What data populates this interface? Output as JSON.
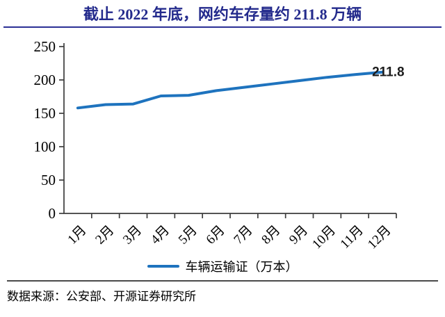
{
  "title": "截止 2022 年底，网约车存量约 211.8 万辆",
  "colors": {
    "title": "#232a8c",
    "title_rule": "#2b3095",
    "line": "#1e73be",
    "axis": "#3c3c3c",
    "tick_text": "#000000",
    "annotation_text": "#1c1c1c",
    "source_rule": "#4a4a4a"
  },
  "chart_data": {
    "type": "line",
    "categories": [
      "1月",
      "2月",
      "3月",
      "4月",
      "5月",
      "6月",
      "7月",
      "8月",
      "9月",
      "10月",
      "11月",
      "12月"
    ],
    "series": [
      {
        "name": "车辆运输证（万本）",
        "values": [
          158,
          163,
          164,
          176,
          177,
          184,
          189,
          194,
          199,
          204,
          208,
          211.8
        ]
      }
    ],
    "title": "截止 2022 年底，网约车存量约 211.8 万辆",
    "xlabel": "",
    "ylabel": "",
    "ylim": [
      0,
      250
    ],
    "ytick_step": 50,
    "yticks": [
      0,
      50,
      100,
      150,
      200,
      250
    ],
    "grid": false,
    "legend_position": "bottom",
    "annotation": {
      "text": "211.8",
      "point_index": 11
    }
  },
  "legend": {
    "label": "车辆运输证（万本）"
  },
  "source": "数据来源：公安部、开源证券研究所"
}
